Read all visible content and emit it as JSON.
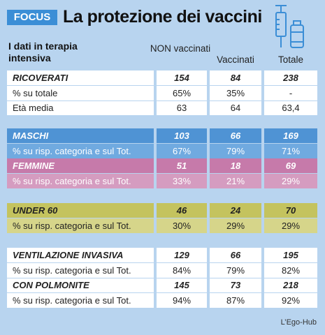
{
  "header": {
    "tag": "FOCUS",
    "title": "La protezione dei vaccini"
  },
  "table": {
    "label_header": "I dati in terapia intensiva",
    "columns": [
      "NON vaccinati",
      "Vaccinati",
      "Totale"
    ],
    "groups": [
      {
        "rows": [
          {
            "label": "RICOVERATI",
            "values": [
              "154",
              "84",
              "238"
            ]
          },
          {
            "label": "% su totale",
            "values": [
              "65%",
              "35%",
              "-"
            ]
          },
          {
            "label": "Età media",
            "values": [
              "63",
              "64",
              "63,4"
            ]
          }
        ]
      },
      {
        "rows": [
          {
            "label": "MASCHI",
            "values": [
              "103",
              "66",
              "169"
            ]
          },
          {
            "label": "% su risp. categoria e sul Tot.",
            "values": [
              "67%",
              "79%",
              "71%"
            ]
          },
          {
            "label": "FEMMINE",
            "values": [
              "51",
              "18",
              "69"
            ]
          },
          {
            "label": "% su risp. categoria e sul Tot.",
            "values": [
              "33%",
              "21%",
              "29%"
            ]
          }
        ]
      },
      {
        "rows": [
          {
            "label": "UNDER 60",
            "values": [
              "46",
              "24",
              "70"
            ]
          },
          {
            "label": "% su risp. categoria e sul Tot.",
            "values": [
              "30%",
              "29%",
              "29%"
            ]
          }
        ]
      },
      {
        "rows": [
          {
            "label": "VENTILAZIONE INVASIVA",
            "values": [
              "129",
              "66",
              "195"
            ]
          },
          {
            "label": "% su risp. categoria e sul Tot.",
            "values": [
              "84%",
              "79%",
              "82%"
            ]
          },
          {
            "label": "CON POLMONITE",
            "values": [
              "145",
              "73",
              "218"
            ]
          },
          {
            "label": "% su risp. categoria e sul Tot.",
            "values": [
              "94%",
              "87%",
              "92%"
            ]
          }
        ]
      }
    ]
  },
  "footer": {
    "credit": "L’Ego-Hub"
  }
}
